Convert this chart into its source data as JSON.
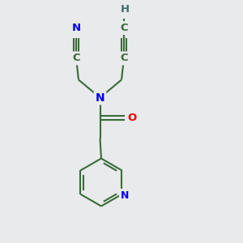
{
  "bg_color": "#e8eaeb",
  "bond_color": "#3a6b3a",
  "N_color": "#0000ee",
  "O_color": "#ee0000",
  "C_color": "#3a6b3a",
  "H_color": "#3a7070",
  "line_width": 1.5,
  "figsize": [
    3.0,
    3.0
  ],
  "dpi": 100,
  "xlim": [
    0,
    10
  ],
  "ylim": [
    0,
    10
  ]
}
